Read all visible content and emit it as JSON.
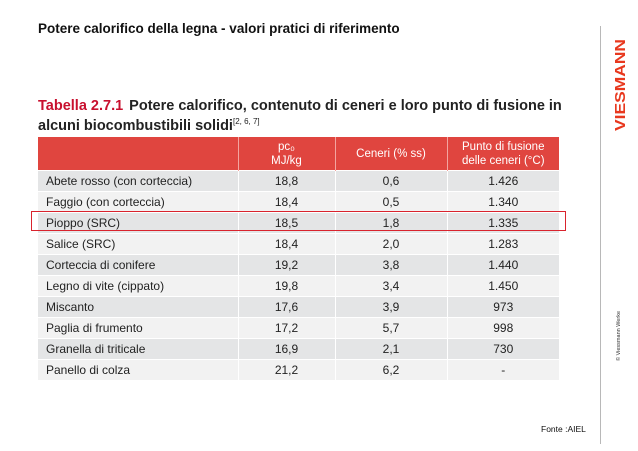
{
  "slide": {
    "title": "Potere calorifico della legna - valori pratici di riferimento",
    "source": "Fonte :AIEL",
    "brand": "VIESMANN",
    "copyright": "© Viessmann Werke"
  },
  "table": {
    "caption_prefix": "Tabella 2.7.1",
    "caption_text": "Potere calorifico, contenuto di ceneri e loro punto di fusione in alcuni biocombustibili solidi",
    "caption_refs": "[2, 6, 7]",
    "headers": {
      "col1": "",
      "col2_line1": "pc₀",
      "col2_line2": "MJ/kg",
      "col3": "Ceneri (% ss)",
      "col4_line1": "Punto di fusione",
      "col4_line2": "delle ceneri (°C)"
    },
    "rows": [
      {
        "name": "Abete rosso (con corteccia)",
        "pc": "18,8",
        "ash": "0,6",
        "melt": "1.426"
      },
      {
        "name": "Faggio (con corteccia)",
        "pc": "18,4",
        "ash": "0,5",
        "melt": "1.340"
      },
      {
        "name": "Pioppo (SRC)",
        "pc": "18,5",
        "ash": "1,8",
        "melt": "1.335"
      },
      {
        "name": "Salice (SRC)",
        "pc": "18,4",
        "ash": "2,0",
        "melt": "1.283"
      },
      {
        "name": "Corteccia di conifere",
        "pc": "19,2",
        "ash": "3,8",
        "melt": "1.440"
      },
      {
        "name": "Legno di vite (cippato)",
        "pc": "19,8",
        "ash": "3,4",
        "melt": "1.450"
      },
      {
        "name": "Miscanto",
        "pc": "17,6",
        "ash": "3,9",
        "melt": "973"
      },
      {
        "name": "Paglia di frumento",
        "pc": "17,2",
        "ash": "5,7",
        "melt": "998"
      },
      {
        "name": "Granella di triticale",
        "pc": "16,9",
        "ash": "2,1",
        "melt": "730"
      },
      {
        "name": "Panello di colza",
        "pc": "21,2",
        "ash": "6,2",
        "melt": "-"
      }
    ],
    "highlighted_row_name": "Pioppo (SRC)"
  },
  "colors": {
    "header_red": "#e0453f",
    "brand_red": "#e8381e",
    "highlight_border": "#d9232d"
  }
}
